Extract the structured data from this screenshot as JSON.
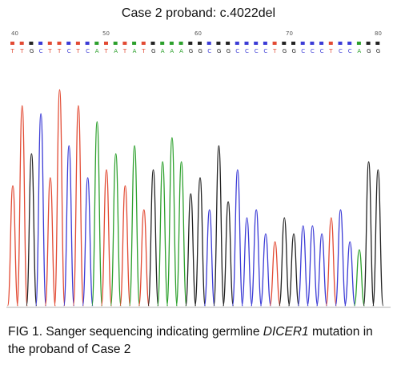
{
  "title": "Case 2 proband: c.4022del",
  "positions": [
    "40",
    "50",
    "60",
    "70",
    "80"
  ],
  "sequence": "TTGCTTCTCATATATGAAAGGCGGCCCCTGGCCCTCCAGG",
  "colors": {
    "A": "#2ca02c",
    "C": "#3b3bd6",
    "G": "#222222",
    "T": "#e24a33"
  },
  "caption": {
    "prefix": "FIG 1. Sanger sequencing indicating germline ",
    "gene": "DICER1",
    "suffix": " mutation in the proband of Case 2"
  }
}
